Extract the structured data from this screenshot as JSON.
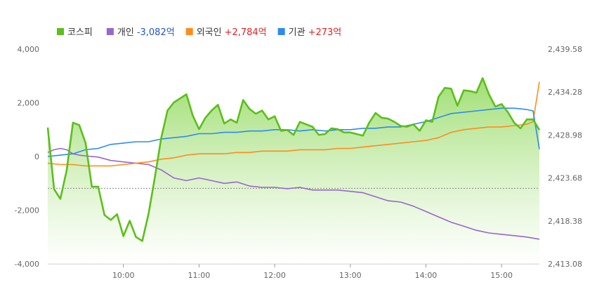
{
  "chart_data": {
    "type": "line",
    "legend": [
      {
        "key": "kospi",
        "label": "코스피",
        "value": "",
        "color": "#5cbf1a",
        "value_color": "#333333"
      },
      {
        "key": "individual",
        "label": "개인",
        "value": "-3,082억",
        "color": "#9966cc",
        "value_color": "#2255cc"
      },
      {
        "key": "foreign",
        "label": "외국인",
        "value": "+2,784억",
        "color": "#ff8c1a",
        "value_color": "#dd2222"
      },
      {
        "key": "institution",
        "label": "기관",
        "value": "+273억",
        "color": "#2b8cee",
        "value_color": "#dd2222"
      }
    ],
    "legend_placement": "top-left",
    "x_ticks": [
      "10:00",
      "11:00",
      "12:00",
      "13:00",
      "14:00",
      "15:00"
    ],
    "y_left_ticks": [
      "4,000",
      "2,000",
      "0",
      "-2,000",
      "-4,000"
    ],
    "y_right_ticks": [
      "2,439.58",
      "2,434.28",
      "2,428.98",
      "2,423.68",
      "2,418.38",
      "2,413.08"
    ],
    "y_left_range": [
      -4000,
      4000
    ],
    "y_right_range": [
      2413.08,
      2439.58
    ],
    "x_range": [
      "09:00",
      "15:30"
    ],
    "reference_line": 2422.4,
    "series": [
      {
        "key": "kospi",
        "axis": "right",
        "color": "#5cbf1a",
        "fill": true,
        "points": [
          [
            "09:00",
            2429.9
          ],
          [
            "09:05",
            2422.3
          ],
          [
            "09:10",
            2421.1
          ],
          [
            "09:15",
            2424.6
          ],
          [
            "09:20",
            2430.5
          ],
          [
            "09:25",
            2430.2
          ],
          [
            "09:30",
            2428.0
          ],
          [
            "09:35",
            2422.6
          ],
          [
            "09:40",
            2422.6
          ],
          [
            "09:45",
            2419.1
          ],
          [
            "09:50",
            2418.5
          ],
          [
            "09:55",
            2419.2
          ],
          [
            "10:00",
            2416.5
          ],
          [
            "10:05",
            2418.4
          ],
          [
            "10:10",
            2416.4
          ],
          [
            "10:15",
            2415.9
          ],
          [
            "10:20",
            2419.3
          ],
          [
            "10:25",
            2423.8
          ],
          [
            "10:30",
            2428.6
          ],
          [
            "10:35",
            2432.0
          ],
          [
            "10:40",
            2433.0
          ],
          [
            "10:45",
            2433.5
          ],
          [
            "10:50",
            2434.0
          ],
          [
            "10:55",
            2431.4
          ],
          [
            "11:00",
            2429.7
          ],
          [
            "11:05",
            2431.1
          ],
          [
            "11:10",
            2432.0
          ],
          [
            "11:15",
            2432.7
          ],
          [
            "11:20",
            2430.4
          ],
          [
            "11:25",
            2430.9
          ],
          [
            "11:30",
            2430.5
          ],
          [
            "11:35",
            2433.3
          ],
          [
            "11:40",
            2432.2
          ],
          [
            "11:45",
            2431.6
          ],
          [
            "11:50",
            2432.0
          ],
          [
            "11:55",
            2430.9
          ],
          [
            "12:00",
            2431.3
          ],
          [
            "12:05",
            2429.5
          ],
          [
            "12:10",
            2429.6
          ],
          [
            "12:15",
            2429.0
          ],
          [
            "12:20",
            2430.6
          ],
          [
            "12:25",
            2430.3
          ],
          [
            "12:30",
            2430.0
          ],
          [
            "12:35",
            2429.0
          ],
          [
            "12:40",
            2429.1
          ],
          [
            "12:45",
            2429.8
          ],
          [
            "12:50",
            2429.7
          ],
          [
            "12:55",
            2429.3
          ],
          [
            "13:00",
            2429.3
          ],
          [
            "13:05",
            2429.1
          ],
          [
            "13:10",
            2428.9
          ],
          [
            "13:15",
            2430.5
          ],
          [
            "13:20",
            2431.7
          ],
          [
            "13:25",
            2431.1
          ],
          [
            "13:30",
            2431.0
          ],
          [
            "13:35",
            2430.6
          ],
          [
            "13:40",
            2430.1
          ],
          [
            "13:45",
            2430.0
          ],
          [
            "13:50",
            2430.3
          ],
          [
            "13:55",
            2429.5
          ],
          [
            "14:00",
            2430.8
          ],
          [
            "14:05",
            2430.6
          ],
          [
            "14:10",
            2433.7
          ],
          [
            "14:15",
            2434.8
          ],
          [
            "14:20",
            2434.7
          ],
          [
            "14:25",
            2432.6
          ],
          [
            "14:30",
            2434.5
          ],
          [
            "14:35",
            2434.4
          ],
          [
            "14:40",
            2434.2
          ],
          [
            "14:45",
            2436.0
          ],
          [
            "14:50",
            2434.0
          ],
          [
            "14:55",
            2432.5
          ],
          [
            "15:00",
            2432.8
          ],
          [
            "15:05",
            2431.8
          ],
          [
            "15:10",
            2430.5
          ],
          [
            "15:15",
            2429.8
          ],
          [
            "15:20",
            2430.9
          ],
          [
            "15:25",
            2430.9
          ],
          [
            "15:30",
            2429.6
          ]
        ]
      },
      {
        "key": "individual",
        "axis": "left",
        "color": "#9966cc",
        "fill": false,
        "points": [
          [
            "09:00",
            150
          ],
          [
            "09:05",
            250
          ],
          [
            "09:10",
            300
          ],
          [
            "09:15",
            250
          ],
          [
            "09:20",
            100
          ],
          [
            "09:25",
            50
          ],
          [
            "09:30",
            20
          ],
          [
            "09:40",
            -20
          ],
          [
            "09:50",
            -150
          ],
          [
            "10:00",
            -200
          ],
          [
            "10:10",
            -250
          ],
          [
            "10:20",
            -300
          ],
          [
            "10:30",
            -500
          ],
          [
            "10:40",
            -800
          ],
          [
            "10:50",
            -900
          ],
          [
            "11:00",
            -800
          ],
          [
            "11:10",
            -900
          ],
          [
            "11:20",
            -1000
          ],
          [
            "11:30",
            -950
          ],
          [
            "11:40",
            -1100
          ],
          [
            "11:50",
            -1150
          ],
          [
            "12:00",
            -1150
          ],
          [
            "12:10",
            -1200
          ],
          [
            "12:20",
            -1150
          ],
          [
            "12:30",
            -1250
          ],
          [
            "12:40",
            -1250
          ],
          [
            "12:50",
            -1250
          ],
          [
            "13:00",
            -1300
          ],
          [
            "13:10",
            -1350
          ],
          [
            "13:20",
            -1500
          ],
          [
            "13:30",
            -1650
          ],
          [
            "13:40",
            -1700
          ],
          [
            "13:50",
            -1850
          ],
          [
            "14:00",
            -2050
          ],
          [
            "14:10",
            -2250
          ],
          [
            "14:20",
            -2450
          ],
          [
            "14:30",
            -2600
          ],
          [
            "14:40",
            -2750
          ],
          [
            "14:50",
            -2850
          ],
          [
            "15:00",
            -2900
          ],
          [
            "15:10",
            -2950
          ],
          [
            "15:20",
            -3000
          ],
          [
            "15:30",
            -3082
          ]
        ]
      },
      {
        "key": "foreign",
        "axis": "left",
        "color": "#ff8c1a",
        "fill": false,
        "points": [
          [
            "09:00",
            -250
          ],
          [
            "09:10",
            -300
          ],
          [
            "09:20",
            -300
          ],
          [
            "09:30",
            -350
          ],
          [
            "09:40",
            -350
          ],
          [
            "09:50",
            -350
          ],
          [
            "10:00",
            -300
          ],
          [
            "10:10",
            -250
          ],
          [
            "10:20",
            -200
          ],
          [
            "10:30",
            -100
          ],
          [
            "10:40",
            -50
          ],
          [
            "10:50",
            50
          ],
          [
            "11:00",
            100
          ],
          [
            "11:10",
            100
          ],
          [
            "11:20",
            100
          ],
          [
            "11:30",
            150
          ],
          [
            "11:40",
            150
          ],
          [
            "11:50",
            200
          ],
          [
            "12:00",
            200
          ],
          [
            "12:10",
            200
          ],
          [
            "12:20",
            250
          ],
          [
            "12:30",
            250
          ],
          [
            "12:40",
            250
          ],
          [
            "12:50",
            300
          ],
          [
            "13:00",
            300
          ],
          [
            "13:10",
            350
          ],
          [
            "13:20",
            400
          ],
          [
            "13:30",
            450
          ],
          [
            "13:40",
            500
          ],
          [
            "13:50",
            550
          ],
          [
            "14:00",
            600
          ],
          [
            "14:10",
            700
          ],
          [
            "14:20",
            900
          ],
          [
            "14:30",
            1000
          ],
          [
            "14:40",
            1050
          ],
          [
            "14:50",
            1100
          ],
          [
            "15:00",
            1100
          ],
          [
            "15:10",
            1150
          ],
          [
            "15:20",
            1200
          ],
          [
            "15:25",
            1300
          ],
          [
            "15:30",
            2784
          ]
        ]
      },
      {
        "key": "institution",
        "axis": "left",
        "color": "#2b8cee",
        "fill": false,
        "points": [
          [
            "09:00",
            0
          ],
          [
            "09:10",
            50
          ],
          [
            "09:20",
            100
          ],
          [
            "09:30",
            250
          ],
          [
            "09:40",
            300
          ],
          [
            "09:50",
            450
          ],
          [
            "10:00",
            500
          ],
          [
            "10:10",
            550
          ],
          [
            "10:20",
            550
          ],
          [
            "10:30",
            650
          ],
          [
            "10:40",
            700
          ],
          [
            "10:50",
            750
          ],
          [
            "11:00",
            850
          ],
          [
            "11:10",
            850
          ],
          [
            "11:20",
            900
          ],
          [
            "11:30",
            900
          ],
          [
            "11:40",
            950
          ],
          [
            "11:50",
            950
          ],
          [
            "12:00",
            1000
          ],
          [
            "12:10",
            1000
          ],
          [
            "12:20",
            950
          ],
          [
            "12:30",
            1000
          ],
          [
            "12:40",
            950
          ],
          [
            "12:50",
            1000
          ],
          [
            "13:00",
            1000
          ],
          [
            "13:10",
            1050
          ],
          [
            "13:20",
            1050
          ],
          [
            "13:30",
            1100
          ],
          [
            "13:40",
            1100
          ],
          [
            "13:50",
            1200
          ],
          [
            "14:00",
            1300
          ],
          [
            "14:10",
            1450
          ],
          [
            "14:20",
            1600
          ],
          [
            "14:30",
            1650
          ],
          [
            "14:40",
            1700
          ],
          [
            "14:50",
            1750
          ],
          [
            "15:00",
            1800
          ],
          [
            "15:10",
            1800
          ],
          [
            "15:20",
            1750
          ],
          [
            "15:25",
            1700
          ],
          [
            "15:30",
            273
          ]
        ]
      }
    ]
  }
}
